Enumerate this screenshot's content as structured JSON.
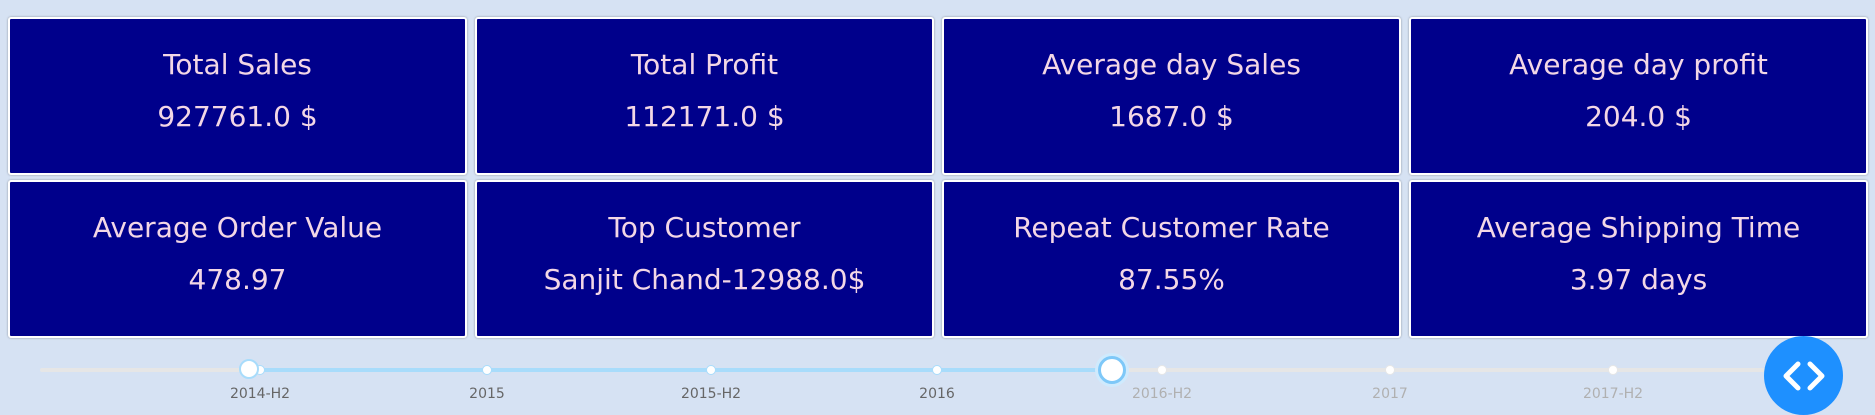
{
  "cards": [
    {
      "title": "Total Sales",
      "value": "927761.0 $"
    },
    {
      "title": "Total Profit",
      "value": "112171.0 $"
    },
    {
      "title": "Average day Sales",
      "value": "1687.0 $"
    },
    {
      "title": "Average day profit",
      "value": "204.0 $"
    },
    {
      "title": "Average Order Value",
      "value": "478.97"
    },
    {
      "title": "Top Customer",
      "value": "Sanjit Chand-12988.0$"
    },
    {
      "title": "Repeat Customer Rate",
      "value": "87.55%"
    },
    {
      "title": "Average Shipping Time",
      "value": "3.97 days"
    }
  ],
  "slider": {
    "marks": [
      "2014-H2",
      "2015",
      "2015-H2",
      "2016",
      "2016-H2",
      "2017",
      "2017-H2"
    ],
    "range_start": "2014-H2",
    "range_end": "2016-H1"
  },
  "colors": {
    "card_bg": "#00008b",
    "card_text": "#f3d7e6",
    "page_bg": "#d6e2f3",
    "slider_track": "#a8dcfb",
    "code_button": "#1e90ff"
  },
  "icons": {
    "code_button": "code-brackets-icon"
  }
}
